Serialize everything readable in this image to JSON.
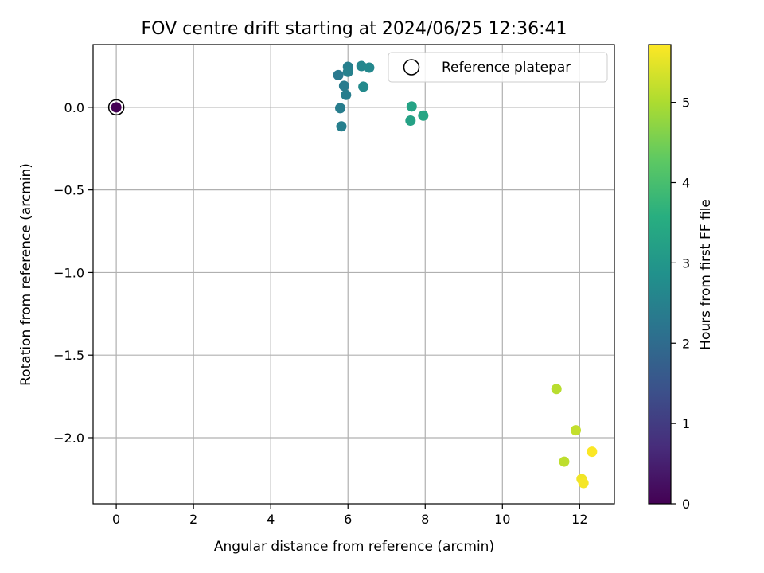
{
  "chart_data": {
    "type": "scatter",
    "title": "FOV centre drift starting at 2024/06/25 12:36:41",
    "xlabel": "Angular distance from reference (arcmin)",
    "ylabel": "Rotation from reference (arcmin)",
    "xlim": [
      -0.6,
      12.9
    ],
    "ylim": [
      -2.4,
      0.38
    ],
    "x_ticks": [
      0,
      2,
      4,
      6,
      8,
      10,
      12
    ],
    "x_tick_labels": [
      "0",
      "2",
      "4",
      "6",
      "8",
      "10",
      "12"
    ],
    "y_ticks": [
      0.0,
      -0.5,
      -1.0,
      -1.5,
      -2.0
    ],
    "y_tick_labels": [
      "0.0",
      "−0.5",
      "−1.0",
      "−1.5",
      "−2.0"
    ],
    "grid": true,
    "colormap": "viridis",
    "colorbar": {
      "label": "Hours from first FF file",
      "range": [
        0,
        5.72
      ],
      "ticks": [
        0,
        1,
        2,
        3,
        4,
        5
      ],
      "tick_labels": [
        "0",
        "1",
        "2",
        "3",
        "4",
        "5"
      ]
    },
    "legend": {
      "placement": "top-right",
      "entries": [
        {
          "label": "Reference platepar",
          "marker": "open-circle"
        }
      ]
    },
    "reference": {
      "x": 0.0,
      "y": 0.0
    },
    "points": [
      {
        "x": 0.0,
        "y": 0.0,
        "hours": 0.0
      },
      {
        "x": 5.75,
        "y": 0.195,
        "hours": 2.3
      },
      {
        "x": 5.9,
        "y": 0.13,
        "hours": 2.35
      },
      {
        "x": 5.95,
        "y": 0.075,
        "hours": 2.4
      },
      {
        "x": 6.0,
        "y": 0.245,
        "hours": 2.45
      },
      {
        "x": 6.0,
        "y": 0.215,
        "hours": 2.5
      },
      {
        "x": 5.8,
        "y": -0.005,
        "hours": 2.4
      },
      {
        "x": 5.83,
        "y": -0.115,
        "hours": 2.45
      },
      {
        "x": 6.35,
        "y": 0.25,
        "hours": 2.6
      },
      {
        "x": 6.55,
        "y": 0.24,
        "hours": 2.65
      },
      {
        "x": 6.4,
        "y": 0.125,
        "hours": 2.7
      },
      {
        "x": 7.65,
        "y": 0.005,
        "hours": 3.3
      },
      {
        "x": 7.62,
        "y": -0.08,
        "hours": 3.25
      },
      {
        "x": 7.95,
        "y": -0.05,
        "hours": 3.35
      },
      {
        "x": 11.4,
        "y": -1.705,
        "hours": 5.1
      },
      {
        "x": 11.9,
        "y": -1.955,
        "hours": 5.2
      },
      {
        "x": 11.6,
        "y": -2.145,
        "hours": 5.15
      },
      {
        "x": 12.05,
        "y": -2.25,
        "hours": 5.6
      },
      {
        "x": 12.1,
        "y": -2.275,
        "hours": 5.65
      },
      {
        "x": 12.32,
        "y": -2.085,
        "hours": 5.7
      }
    ]
  }
}
